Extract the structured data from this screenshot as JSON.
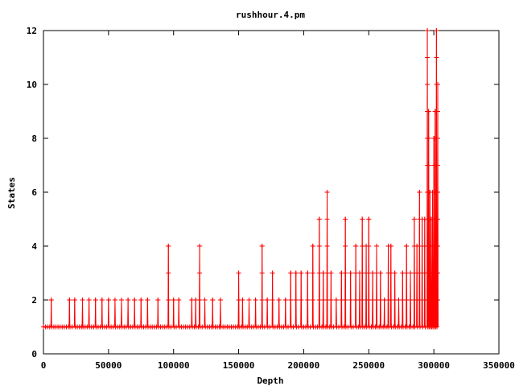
{
  "chart_data": {
    "type": "line",
    "title": "rushhour.4.pm",
    "xlabel": "Depth",
    "ylabel": "States",
    "xlim": [
      0,
      350000
    ],
    "ylim": [
      0,
      12
    ],
    "x_ticks": [
      "0",
      "50000",
      "100000",
      "150000",
      "200000",
      "250000",
      "300000",
      "350000"
    ],
    "y_ticks": [
      "0",
      "2",
      "4",
      "6",
      "8",
      "10",
      "12"
    ],
    "grid": false,
    "legend": "none",
    "line_color": "#ff0000",
    "marker": "plus",
    "x_start": 0,
    "x_end": 303000,
    "baseline_value": 1,
    "series": [
      {
        "values_by_depth": [
          [
            6000,
            2
          ],
          [
            20000,
            2
          ],
          [
            24000,
            2
          ],
          [
            30000,
            2
          ],
          [
            35000,
            2
          ],
          [
            40000,
            2
          ],
          [
            45000,
            2
          ],
          [
            50000,
            2
          ],
          [
            55000,
            2
          ],
          [
            60000,
            2
          ],
          [
            65000,
            2
          ],
          [
            70000,
            2
          ],
          [
            75000,
            2
          ],
          [
            80000,
            2
          ],
          [
            88000,
            2
          ],
          [
            96000,
            4
          ],
          [
            100000,
            2
          ],
          [
            104000,
            2
          ],
          [
            114000,
            2
          ],
          [
            117000,
            2
          ],
          [
            120000,
            4
          ],
          [
            124000,
            2
          ],
          [
            130000,
            2
          ],
          [
            136000,
            2
          ],
          [
            150000,
            3
          ],
          [
            153000,
            2
          ],
          [
            158000,
            2
          ],
          [
            163000,
            2
          ],
          [
            168000,
            4
          ],
          [
            172000,
            2
          ],
          [
            176000,
            3
          ],
          [
            181000,
            2
          ],
          [
            186000,
            2
          ],
          [
            190000,
            3
          ],
          [
            194000,
            3
          ],
          [
            198000,
            3
          ],
          [
            203000,
            3
          ],
          [
            207000,
            4
          ],
          [
            212000,
            5
          ],
          [
            215000,
            3
          ],
          [
            218000,
            6
          ],
          [
            221000,
            3
          ],
          [
            225000,
            2
          ],
          [
            229000,
            3
          ],
          [
            232000,
            5
          ],
          [
            236000,
            3
          ],
          [
            240000,
            4
          ],
          [
            243000,
            3
          ],
          [
            245000,
            5
          ],
          [
            248000,
            4
          ],
          [
            250000,
            5
          ],
          [
            253000,
            3
          ],
          [
            256000,
            4
          ],
          [
            259000,
            3
          ],
          [
            262000,
            2
          ],
          [
            265000,
            4
          ],
          [
            267000,
            4
          ],
          [
            270000,
            3
          ],
          [
            273000,
            2
          ],
          [
            276000,
            3
          ],
          [
            279000,
            4
          ],
          [
            282000,
            3
          ],
          [
            285000,
            5
          ],
          [
            287000,
            4
          ],
          [
            289000,
            6
          ],
          [
            291000,
            5
          ],
          [
            293000,
            5
          ],
          [
            295000,
            12
          ],
          [
            296000,
            9
          ],
          [
            297000,
            6
          ],
          [
            298000,
            5
          ],
          [
            299000,
            6
          ],
          [
            300000,
            8
          ],
          [
            301000,
            9
          ],
          [
            302000,
            12
          ],
          [
            303000,
            10
          ]
        ]
      }
    ]
  }
}
